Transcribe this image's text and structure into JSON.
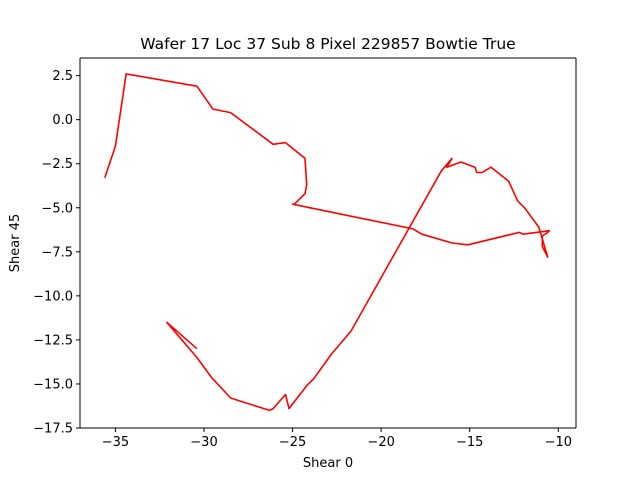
{
  "chart_data": {
    "type": "line",
    "title": "Wafer 17 Loc 37 Sub 8 Pixel 229857 Bowtie True",
    "xlabel": "Shear 0",
    "ylabel": "Shear 45",
    "xlim": [
      -37,
      -9
    ],
    "ylim": [
      -17.5,
      3.5
    ],
    "xticks": [
      -35,
      -30,
      -25,
      -20,
      -15,
      -10
    ],
    "yticks": [
      2.5,
      0.0,
      -2.5,
      -5.0,
      -7.5,
      -10.0,
      -12.5,
      -15.0,
      -17.5
    ],
    "xtick_labels": [
      "−35",
      "−30",
      "−25",
      "−20",
      "−15",
      "−10"
    ],
    "ytick_labels": [
      "2.5",
      "0.0",
      "−2.5",
      "−5.0",
      "−7.5",
      "−10.0",
      "−12.5",
      "−15.0",
      "−17.5"
    ],
    "grid": false,
    "series": [
      {
        "color": "#ff0000",
        "x": [
          -35.6,
          -35.0,
          -34.6,
          -34.4,
          -30.4,
          -29.5,
          -28.5,
          -26.1,
          -25.4,
          -24.3,
          -24.2,
          -24.3,
          -24.9,
          -25.0,
          -18.2,
          -17.7,
          -16.0,
          -15.1,
          -12.2,
          -12.0,
          -10.5,
          -10.6,
          -10.9,
          -10.9,
          -10.6,
          -11.1,
          -11.9,
          -12.3,
          -12.8,
          -13.8,
          -14.3,
          -14.6,
          -14.7,
          -15.5,
          -16.3,
          -16.0,
          -16.6,
          -21.7,
          -22.8,
          -23.8,
          -24.2,
          -25.2,
          -25.4,
          -26.1,
          -26.3,
          -28.5,
          -29.6,
          -30.4,
          -32.1,
          -30.4
        ],
        "y": [
          -3.3,
          -1.5,
          1.2,
          2.6,
          1.9,
          0.6,
          0.4,
          -1.4,
          -1.3,
          -2.2,
          -3.7,
          -4.2,
          -4.8,
          -4.8,
          -6.2,
          -6.5,
          -7.0,
          -7.1,
          -6.4,
          -6.5,
          -6.3,
          -6.4,
          -6.6,
          -7.2,
          -7.8,
          -6.1,
          -5.0,
          -4.6,
          -3.5,
          -2.7,
          -3.0,
          -3.0,
          -2.7,
          -2.4,
          -2.7,
          -2.2,
          -2.9,
          -12.0,
          -13.3,
          -14.7,
          -15.1,
          -16.4,
          -15.6,
          -16.4,
          -16.5,
          -15.8,
          -14.6,
          -13.5,
          -11.5,
          -13.0
        ]
      }
    ]
  }
}
